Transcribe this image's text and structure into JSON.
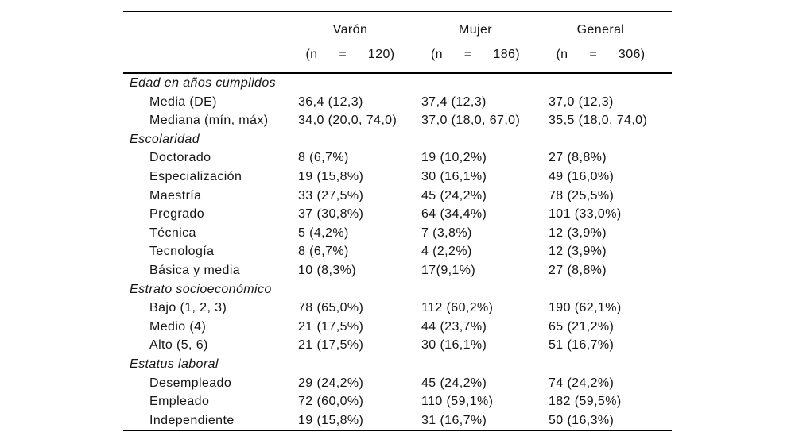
{
  "table": {
    "rule_color": "#000000",
    "text_color": "#141414",
    "columns": [
      {
        "label": "Varón",
        "n_label": "(n = 120)"
      },
      {
        "label": "Mujer",
        "n_label": "(n = 186)"
      },
      {
        "label": "General",
        "n_label": "(n = 306)"
      }
    ],
    "sections": [
      {
        "title": "Edad en años cumplidos",
        "rows": [
          {
            "label": "Media (DE)",
            "values": [
              "36,4 (12,3)",
              "37,4 (12,3)",
              "37,0 (12,3)"
            ]
          },
          {
            "label": "Mediana (mín, máx)",
            "values": [
              "34,0 (20,0, 74,0)",
              "37,0 (18,0, 67,0)",
              "35,5 (18,0, 74,0)"
            ]
          }
        ]
      },
      {
        "title": "Escolaridad",
        "rows": [
          {
            "label": "Doctorado",
            "values": [
              "8 (6,7%)",
              "19 (10,2%)",
              "27 (8,8%)"
            ]
          },
          {
            "label": "Especialización",
            "values": [
              "19 (15,8%)",
              "30 (16,1%)",
              "49 (16,0%)"
            ]
          },
          {
            "label": "Maestría",
            "values": [
              "33 (27,5%)",
              "45 (24,2%)",
              "78 (25,5%)"
            ]
          },
          {
            "label": "Pregrado",
            "values": [
              "37 (30,8%)",
              "64 (34,4%)",
              "101 (33,0%)"
            ]
          },
          {
            "label": "Técnica",
            "values": [
              "5 (4,2%)",
              "7 (3,8%)",
              "12 (3,9%)"
            ]
          },
          {
            "label": "Tecnología",
            "values": [
              "8 (6,7%)",
              "4 (2,2%)",
              "12 (3,9%)"
            ]
          },
          {
            "label": "Básica y media",
            "values": [
              "10 (8,3%)",
              "17(9,1%)",
              "27 (8,8%)"
            ]
          }
        ]
      },
      {
        "title": "Estrato socioeconómico",
        "rows": [
          {
            "label": "Bajo (1, 2, 3)",
            "values": [
              "78 (65,0%)",
              "112 (60,2%)",
              "190 (62,1%)"
            ]
          },
          {
            "label": "Medio (4)",
            "values": [
              "21 (17,5%)",
              "44 (23,7%)",
              "65 (21,2%)"
            ]
          },
          {
            "label": "Alto (5, 6)",
            "values": [
              "21 (17,5%)",
              "30 (16,1%)",
              "51 (16,7%)"
            ]
          }
        ]
      },
      {
        "title": "Estatus laboral",
        "rows": [
          {
            "label": "Desempleado",
            "values": [
              "29 (24,2%)",
              "45 (24,2%)",
              "74 (24,2%)"
            ]
          },
          {
            "label": "Empleado",
            "values": [
              "72 (60,0%)",
              "110 (59,1%)",
              "182 (59,5%)"
            ]
          },
          {
            "label": "Independiente",
            "values": [
              "19 (15,8%)",
              "31 (16,7%)",
              "50 (16,3%)"
            ]
          }
        ]
      }
    ]
  }
}
